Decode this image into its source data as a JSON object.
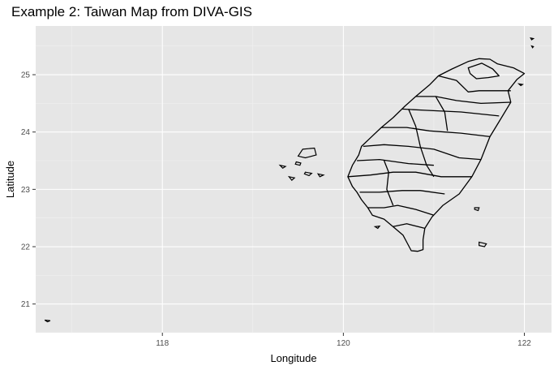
{
  "chart_data": {
    "type": "map",
    "title": "Example 2: Taiwan Map from DIVA-GIS",
    "xlabel": "Longitude",
    "ylabel": "Latitude",
    "xlim": [
      116.6,
      122.3
    ],
    "ylim": [
      20.5,
      25.85
    ],
    "x_ticks": [
      118,
      120,
      122
    ],
    "y_ticks": [
      21,
      22,
      23,
      24,
      25
    ],
    "grid": true,
    "background": "#e6e6e6",
    "stroke_color": "#000000",
    "regions": [
      {
        "name": "",
        "polygon": [
          [
            121.38,
            25.23
          ],
          [
            121.5,
            25.28
          ],
          [
            121.62,
            25.27
          ],
          [
            121.7,
            25.19
          ],
          [
            121.88,
            25.12
          ],
          [
            122.0,
            25.02
          ],
          [
            121.92,
            24.92
          ],
          [
            121.82,
            24.72
          ],
          [
            121.85,
            24.52
          ],
          [
            121.72,
            24.18
          ],
          [
            121.62,
            23.92
          ],
          [
            121.52,
            23.52
          ],
          [
            121.42,
            23.22
          ],
          [
            121.28,
            22.92
          ],
          [
            121.1,
            22.72
          ],
          [
            120.98,
            22.52
          ],
          [
            120.9,
            22.32
          ],
          [
            120.88,
            22.12
          ],
          [
            120.88,
            21.95
          ],
          [
            120.82,
            21.92
          ],
          [
            120.75,
            21.93
          ],
          [
            120.71,
            22.05
          ],
          [
            120.66,
            22.2
          ],
          [
            120.57,
            22.32
          ],
          [
            120.45,
            22.48
          ],
          [
            120.32,
            22.55
          ],
          [
            120.27,
            22.68
          ],
          [
            120.2,
            22.82
          ],
          [
            120.15,
            22.95
          ],
          [
            120.1,
            23.05
          ],
          [
            120.05,
            23.22
          ],
          [
            120.1,
            23.42
          ],
          [
            120.17,
            23.6
          ],
          [
            120.2,
            23.75
          ],
          [
            120.3,
            23.9
          ],
          [
            120.42,
            24.08
          ],
          [
            120.55,
            24.25
          ],
          [
            120.68,
            24.45
          ],
          [
            120.8,
            24.62
          ],
          [
            120.95,
            24.82
          ],
          [
            121.05,
            24.98
          ],
          [
            121.2,
            25.1
          ],
          [
            121.38,
            25.23
          ]
        ]
      },
      {
        "name": "",
        "polygon": [
          [
            121.38,
            25.12
          ],
          [
            121.53,
            25.2
          ],
          [
            121.65,
            25.1
          ],
          [
            121.72,
            24.98
          ],
          [
            121.6,
            24.95
          ],
          [
            121.47,
            24.93
          ],
          [
            121.4,
            25.02
          ],
          [
            121.38,
            25.12
          ]
        ]
      },
      {
        "name": "",
        "polygon": [
          [
            121.05,
            24.98
          ],
          [
            121.25,
            24.9
          ],
          [
            121.38,
            24.7
          ],
          [
            121.5,
            24.72
          ],
          [
            121.85,
            24.72
          ]
        ]
      },
      {
        "name": "",
        "polygon": [
          [
            120.8,
            24.62
          ],
          [
            121.02,
            24.62
          ],
          [
            121.25,
            24.55
          ],
          [
            121.52,
            24.5
          ],
          [
            121.85,
            24.52
          ]
        ]
      },
      {
        "name": "",
        "polygon": [
          [
            120.65,
            24.4
          ],
          [
            120.9,
            24.38
          ],
          [
            121.3,
            24.35
          ],
          [
            121.72,
            24.28
          ]
        ]
      },
      {
        "name": "",
        "polygon": [
          [
            120.42,
            24.08
          ],
          [
            120.7,
            24.08
          ],
          [
            120.95,
            24.02
          ],
          [
            121.3,
            23.98
          ],
          [
            121.62,
            23.92
          ]
        ]
      },
      {
        "name": "",
        "polygon": [
          [
            120.22,
            23.75
          ],
          [
            120.45,
            23.78
          ],
          [
            120.72,
            23.75
          ],
          [
            121.0,
            23.7
          ],
          [
            121.28,
            23.55
          ],
          [
            121.52,
            23.52
          ]
        ]
      },
      {
        "name": "",
        "polygon": [
          [
            120.15,
            23.5
          ],
          [
            120.4,
            23.52
          ],
          [
            120.72,
            23.45
          ],
          [
            121.0,
            23.42
          ]
        ]
      },
      {
        "name": "",
        "polygon": [
          [
            120.05,
            23.22
          ],
          [
            120.3,
            23.25
          ],
          [
            120.55,
            23.3
          ],
          [
            120.8,
            23.3
          ],
          [
            121.08,
            23.22
          ],
          [
            121.42,
            23.22
          ]
        ]
      },
      {
        "name": "",
        "polygon": [
          [
            120.18,
            22.95
          ],
          [
            120.4,
            22.95
          ],
          [
            120.65,
            22.98
          ],
          [
            120.85,
            22.98
          ],
          [
            121.12,
            22.92
          ]
        ]
      },
      {
        "name": "",
        "polygon": [
          [
            120.27,
            22.68
          ],
          [
            120.45,
            22.68
          ],
          [
            120.6,
            22.72
          ],
          [
            120.8,
            22.65
          ],
          [
            121.0,
            22.55
          ]
        ]
      },
      {
        "name": "",
        "polygon": [
          [
            120.55,
            22.35
          ],
          [
            120.7,
            22.4
          ],
          [
            120.9,
            22.32
          ]
        ]
      },
      {
        "name": "",
        "polygon": [
          [
            120.72,
            24.4
          ],
          [
            120.8,
            24.1
          ],
          [
            120.85,
            23.75
          ],
          [
            120.92,
            23.42
          ],
          [
            121.0,
            23.22
          ]
        ]
      },
      {
        "name": "",
        "polygon": [
          [
            120.45,
            23.5
          ],
          [
            120.5,
            23.3
          ],
          [
            120.48,
            23.0
          ],
          [
            120.55,
            22.72
          ]
        ]
      },
      {
        "name": "",
        "polygon": [
          [
            121.02,
            24.62
          ],
          [
            121.12,
            24.35
          ],
          [
            121.15,
            24.02
          ]
        ]
      }
    ],
    "islands": [
      {
        "name": "",
        "polygon": [
          [
            119.55,
            23.7
          ],
          [
            119.68,
            23.72
          ],
          [
            119.7,
            23.6
          ],
          [
            119.58,
            23.55
          ],
          [
            119.5,
            23.58
          ],
          [
            119.55,
            23.7
          ]
        ]
      },
      {
        "name": "",
        "polygon": [
          [
            119.48,
            23.48
          ],
          [
            119.53,
            23.46
          ],
          [
            119.52,
            23.42
          ],
          [
            119.47,
            23.44
          ],
          [
            119.48,
            23.48
          ]
        ]
      },
      {
        "name": "",
        "polygon": [
          [
            119.58,
            23.3
          ],
          [
            119.65,
            23.28
          ],
          [
            119.62,
            23.24
          ],
          [
            119.57,
            23.27
          ],
          [
            119.58,
            23.3
          ]
        ]
      },
      {
        "name": "",
        "polygon": [
          [
            119.3,
            23.42
          ],
          [
            119.36,
            23.4
          ],
          [
            119.33,
            23.37
          ],
          [
            119.3,
            23.42
          ]
        ]
      },
      {
        "name": "",
        "polygon": [
          [
            119.4,
            23.22
          ],
          [
            119.46,
            23.2
          ],
          [
            119.43,
            23.16
          ],
          [
            119.4,
            23.22
          ]
        ]
      },
      {
        "name": "",
        "polygon": [
          [
            119.72,
            23.27
          ],
          [
            119.78,
            23.25
          ],
          [
            119.74,
            23.22
          ],
          [
            119.72,
            23.27
          ]
        ]
      },
      {
        "name": "",
        "polygon": [
          [
            121.5,
            22.08
          ],
          [
            121.58,
            22.05
          ],
          [
            121.56,
            22.0
          ],
          [
            121.5,
            22.02
          ],
          [
            121.5,
            22.08
          ]
        ]
      },
      {
        "name": "",
        "polygon": [
          [
            121.45,
            22.68
          ],
          [
            121.5,
            22.68
          ],
          [
            121.49,
            22.63
          ],
          [
            121.45,
            22.65
          ],
          [
            121.45,
            22.68
          ]
        ]
      },
      {
        "name": "",
        "polygon": [
          [
            120.35,
            22.35
          ],
          [
            120.4,
            22.36
          ],
          [
            120.38,
            22.32
          ],
          [
            120.35,
            22.35
          ]
        ]
      },
      {
        "name": "",
        "polygon": [
          [
            122.07,
            25.64
          ],
          [
            122.1,
            25.63
          ],
          [
            122.08,
            25.61
          ],
          [
            122.07,
            25.64
          ]
        ]
      },
      {
        "name": "",
        "polygon": [
          [
            122.08,
            25.5
          ],
          [
            122.1,
            25.49
          ],
          [
            122.09,
            25.47
          ],
          [
            122.08,
            25.5
          ]
        ]
      },
      {
        "name": "",
        "polygon": [
          [
            116.7,
            20.72
          ],
          [
            116.76,
            20.71
          ],
          [
            116.73,
            20.69
          ],
          [
            116.7,
            20.72
          ]
        ]
      },
      {
        "name": "",
        "polygon": [
          [
            121.94,
            24.84
          ],
          [
            121.98,
            24.83
          ],
          [
            121.96,
            24.81
          ],
          [
            121.94,
            24.84
          ]
        ]
      }
    ]
  }
}
